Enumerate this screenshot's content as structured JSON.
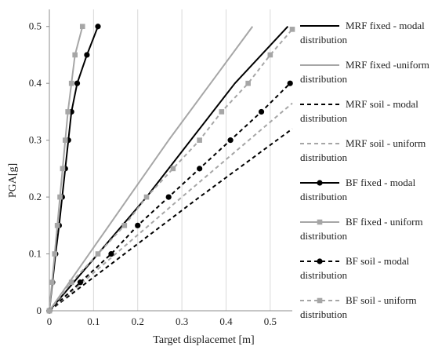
{
  "chart_data": {
    "type": "line",
    "title": "",
    "xlabel": "Target displacemet [m]",
    "ylabel": "PGA[g]",
    "xlim": [
      0,
      0.55
    ],
    "ylim": [
      0,
      0.53
    ],
    "x_ticks": [
      0,
      0.1,
      0.2,
      0.3,
      0.4,
      0.5
    ],
    "x_tick_labels": [
      "0",
      "0.1",
      "0.2",
      "0.3",
      "0.4",
      "0.5"
    ],
    "y_ticks": [
      0,
      0.1,
      0.2,
      0.3,
      0.4,
      0.5
    ],
    "y_tick_labels": [
      "0",
      "0.1",
      "0.2",
      "0.3",
      "0.4",
      "0.5"
    ],
    "grid": "vertical",
    "legend_placement": "right",
    "series": [
      {
        "name_lines": [
          "MRF fixed - modal",
          "distribution"
        ],
        "color": "#000000",
        "dash": "solid",
        "marker": "none",
        "points": [
          [
            0,
            0
          ],
          [
            0.11,
            0.1
          ],
          [
            0.22,
            0.2
          ],
          [
            0.32,
            0.3
          ],
          [
            0.42,
            0.4
          ],
          [
            0.54,
            0.5
          ]
        ]
      },
      {
        "name_lines": [
          "MRF fixed -uniform",
          "distribution"
        ],
        "color": "#a6a6a6",
        "dash": "solid",
        "marker": "none",
        "points": [
          [
            0,
            0
          ],
          [
            0.09,
            0.1
          ],
          [
            0.18,
            0.2
          ],
          [
            0.27,
            0.3
          ],
          [
            0.365,
            0.4
          ],
          [
            0.46,
            0.5
          ]
        ]
      },
      {
        "name_lines": [
          "MRF soil - modal",
          "distribution"
        ],
        "color": "#000000",
        "dash": "dashed",
        "marker": "none",
        "points": [
          [
            0,
            0
          ],
          [
            0.17,
            0.1
          ],
          [
            0.34,
            0.2
          ],
          [
            0.55,
            0.32
          ]
        ]
      },
      {
        "name_lines": [
          "MRF soil - uniform",
          "distribution"
        ],
        "color": "#a6a6a6",
        "dash": "dashed",
        "marker": "none",
        "points": [
          [
            0,
            0
          ],
          [
            0.15,
            0.1
          ],
          [
            0.3,
            0.2
          ],
          [
            0.55,
            0.365
          ]
        ]
      },
      {
        "name_lines": [
          "BF fixed - modal",
          "distribution"
        ],
        "color": "#000000",
        "dash": "solid",
        "marker": "circle",
        "points": [
          [
            0,
            0
          ],
          [
            0.007,
            0.05
          ],
          [
            0.014,
            0.1
          ],
          [
            0.022,
            0.15
          ],
          [
            0.029,
            0.2
          ],
          [
            0.036,
            0.25
          ],
          [
            0.043,
            0.3
          ],
          [
            0.05,
            0.35
          ],
          [
            0.063,
            0.4
          ],
          [
            0.085,
            0.45
          ],
          [
            0.11,
            0.5
          ]
        ]
      },
      {
        "name_lines": [
          "BF fixed - uniform",
          "distribution"
        ],
        "color": "#a6a6a6",
        "dash": "solid",
        "marker": "square",
        "points": [
          [
            0,
            0
          ],
          [
            0.006,
            0.05
          ],
          [
            0.012,
            0.1
          ],
          [
            0.018,
            0.15
          ],
          [
            0.024,
            0.2
          ],
          [
            0.03,
            0.25
          ],
          [
            0.036,
            0.3
          ],
          [
            0.042,
            0.35
          ],
          [
            0.05,
            0.4
          ],
          [
            0.058,
            0.45
          ],
          [
            0.075,
            0.5
          ]
        ]
      },
      {
        "name_lines": [
          "BF soil - modal",
          "distribution"
        ],
        "color": "#000000",
        "dash": "dashed",
        "marker": "circle",
        "points": [
          [
            0,
            0
          ],
          [
            0.07,
            0.05
          ],
          [
            0.14,
            0.1
          ],
          [
            0.2,
            0.15
          ],
          [
            0.27,
            0.2
          ],
          [
            0.34,
            0.25
          ],
          [
            0.41,
            0.3
          ],
          [
            0.48,
            0.35
          ],
          [
            0.545,
            0.4
          ]
        ]
      },
      {
        "name_lines": [
          "BF soil - uniform",
          "distribution"
        ],
        "color": "#a6a6a6",
        "dash": "dashed",
        "marker": "square",
        "points": [
          [
            0,
            0
          ],
          [
            0.05,
            0.05
          ],
          [
            0.11,
            0.1
          ],
          [
            0.17,
            0.15
          ],
          [
            0.22,
            0.2
          ],
          [
            0.28,
            0.25
          ],
          [
            0.34,
            0.3
          ],
          [
            0.39,
            0.35
          ],
          [
            0.45,
            0.4
          ],
          [
            0.5,
            0.45
          ],
          [
            0.55,
            0.495
          ]
        ]
      }
    ]
  }
}
